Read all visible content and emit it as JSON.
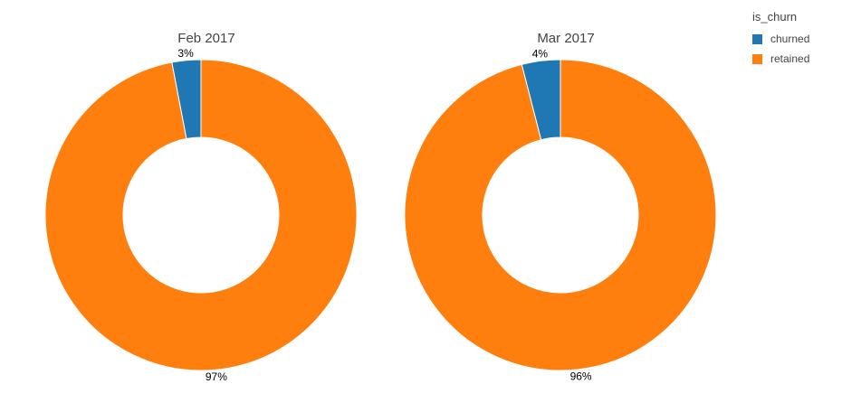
{
  "chart_data": [
    {
      "type": "pie",
      "title": "Feb 2017",
      "labels": [
        "churned",
        "retained"
      ],
      "values": [
        3,
        97
      ],
      "value_labels": [
        "3%",
        "97%"
      ],
      "colors": [
        "#1f77b4",
        "#ff7f0e"
      ],
      "hole": 0.5,
      "direction": "counterclockwise",
      "start_angle": "12 o'clock",
      "label_position": "outside"
    },
    {
      "type": "pie",
      "title": "Mar 2017",
      "labels": [
        "churned",
        "retained"
      ],
      "values": [
        4,
        96
      ],
      "value_labels": [
        "4%",
        "96%"
      ],
      "colors": [
        "#1f77b4",
        "#ff7f0e"
      ],
      "hole": 0.5,
      "direction": "counterclockwise",
      "start_angle": "12 o'clock",
      "label_position": "outside"
    }
  ],
  "legend": {
    "title": "is_churn",
    "position": "top-right",
    "items": [
      {
        "label": "churned",
        "color": "#1f77b4"
      },
      {
        "label": "retained",
        "color": "#ff7f0e"
      }
    ]
  }
}
